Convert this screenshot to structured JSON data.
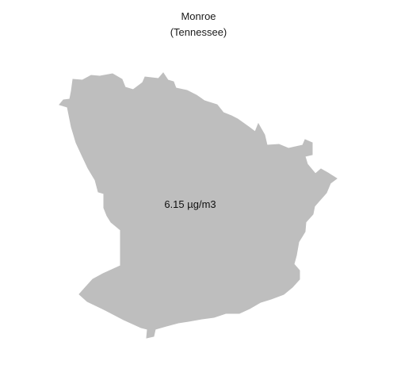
{
  "map": {
    "title_line1": "Monroe",
    "title_line2": "(Tennessee)",
    "region": {
      "name": "Monroe County",
      "value_label": "6.15 µg/m3",
      "fill_color": "#bebebe",
      "background_color": "#ffffff"
    }
  }
}
